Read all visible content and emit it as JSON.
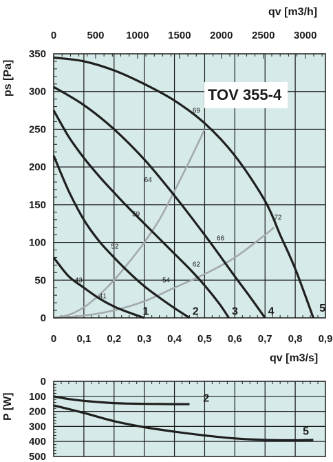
{
  "colors": {
    "plot_bg": "#d6ebe9",
    "grid": "#1a1a1a",
    "curve": "#1f1f1f",
    "eff_curve": "#a3a9ad"
  },
  "chart_data": [
    {
      "type": "line",
      "title": "TOV 355-4",
      "xlabel": "qv [m3/s]",
      "ylabel": "ps [Pa]",
      "x2label": "qv [m3/h]",
      "xlim": [
        0,
        0.9
      ],
      "ylim": [
        0,
        350
      ],
      "x2lim": [
        0,
        3240
      ],
      "x_ticks": [
        "0",
        "0,1",
        "0,2",
        "0,3",
        "0,4",
        "0,5",
        "0,6",
        "0,7",
        "0,8",
        "0,9"
      ],
      "x2_ticks": [
        "0",
        "500",
        "1000",
        "1500",
        "2000",
        "2500",
        "3000"
      ],
      "y_ticks": [
        "0",
        "50",
        "100",
        "150",
        "200",
        "250",
        "300",
        "350"
      ],
      "grid": true,
      "series": [
        {
          "name": "1",
          "x": [
            0,
            0.05,
            0.1,
            0.15,
            0.2,
            0.25,
            0.3
          ],
          "y": [
            80,
            55,
            40,
            26,
            15,
            7,
            0
          ]
        },
        {
          "name": "2",
          "x": [
            0,
            0.05,
            0.1,
            0.15,
            0.2,
            0.25,
            0.3,
            0.35,
            0.4,
            0.45
          ],
          "y": [
            215,
            168,
            130,
            102,
            80,
            60,
            42,
            27,
            13,
            0
          ]
        },
        {
          "name": "3",
          "x": [
            0,
            0.05,
            0.1,
            0.15,
            0.2,
            0.25,
            0.3,
            0.35,
            0.4,
            0.45,
            0.5,
            0.55,
            0.58
          ],
          "y": [
            275,
            240,
            212,
            188,
            166,
            145,
            125,
            105,
            85,
            65,
            43,
            18,
            0
          ]
        },
        {
          "name": "4",
          "x": [
            0,
            0.1,
            0.2,
            0.3,
            0.4,
            0.5,
            0.6,
            0.65,
            0.7
          ],
          "y": [
            306,
            282,
            250,
            210,
            162,
            110,
            55,
            28,
            0
          ]
        },
        {
          "name": "5",
          "x": [
            0,
            0.1,
            0.2,
            0.3,
            0.4,
            0.5,
            0.6,
            0.7,
            0.75,
            0.8,
            0.86
          ],
          "y": [
            345,
            340,
            328,
            310,
            288,
            258,
            215,
            155,
            110,
            65,
            0
          ]
        }
      ],
      "efficiency_curves": [
        {
          "x": [
            0,
            0.05,
            0.1,
            0.15,
            0.2,
            0.25,
            0.3,
            0.35,
            0.4,
            0.45,
            0.5
          ],
          "y": [
            0,
            4,
            14,
            30,
            50,
            74,
            100,
            130,
            168,
            208,
            250
          ]
        },
        {
          "x": [
            0,
            0.1,
            0.2,
            0.3,
            0.4,
            0.5,
            0.6,
            0.7,
            0.73
          ],
          "y": [
            0,
            3,
            10,
            22,
            40,
            58,
            80,
            110,
            120
          ]
        }
      ],
      "efficiency_labels": [
        "69",
        "64",
        "59",
        "52",
        "43",
        "41",
        "54",
        "62",
        "66",
        "72"
      ],
      "curve_labels": [
        "1",
        "2",
        "3",
        "4",
        "5"
      ]
    },
    {
      "type": "line",
      "ylabel": "P [W]",
      "xlim": [
        0,
        0.9
      ],
      "ylim": [
        0,
        500
      ],
      "y_inverted": true,
      "y_ticks": [
        "0",
        "100",
        "200",
        "300",
        "400",
        "500"
      ],
      "grid": true,
      "series": [
        {
          "name": "2",
          "x": [
            0,
            0.05,
            0.1,
            0.15,
            0.2,
            0.25,
            0.3,
            0.35,
            0.4,
            0.45
          ],
          "y": [
            100,
            118,
            130,
            138,
            145,
            148,
            150,
            151,
            152,
            152
          ]
        },
        {
          "name": "5",
          "x": [
            0,
            0.1,
            0.2,
            0.3,
            0.4,
            0.5,
            0.6,
            0.7,
            0.8,
            0.86
          ],
          "y": [
            160,
            210,
            265,
            305,
            335,
            360,
            380,
            390,
            392,
            390
          ]
        }
      ]
    }
  ]
}
